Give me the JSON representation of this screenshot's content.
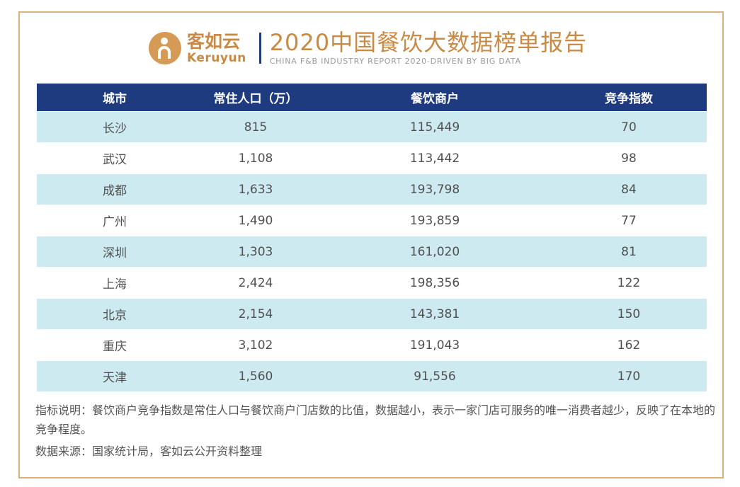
{
  "brand": {
    "cn": "客如云",
    "en": "Keruyun",
    "color": "#c98a45"
  },
  "report": {
    "title": "2020中国餐饮大数据榜单报告",
    "subtitle": "CHINA F&B INDUSTRY REPORT 2020-DRIVEN BY BIG DATA"
  },
  "table": {
    "headers": {
      "city": "城市",
      "population": "常住人口（万）",
      "merchants": "餐饮商户",
      "index": "竞争指数"
    },
    "header_color": "#1f3b80",
    "stripe_color": "#cdeaf0",
    "rows": [
      {
        "city": "长沙",
        "population": "815",
        "merchants": "115,449",
        "index": "70"
      },
      {
        "city": "武汉",
        "population": "1,108",
        "merchants": "113,442",
        "index": "98"
      },
      {
        "city": "成都",
        "population": "1,633",
        "merchants": "193,798",
        "index": "84"
      },
      {
        "city": "广州",
        "population": "1,490",
        "merchants": "193,859",
        "index": "77"
      },
      {
        "city": "深圳",
        "population": "1,303",
        "merchants": "161,020",
        "index": "81"
      },
      {
        "city": "上海",
        "population": "2,424",
        "merchants": "198,356",
        "index": "122"
      },
      {
        "city": "北京",
        "population": "2,154",
        "merchants": "143,381",
        "index": "150"
      },
      {
        "city": "重庆",
        "population": "3,102",
        "merchants": "191,043",
        "index": "162"
      },
      {
        "city": "天津",
        "population": "1,560",
        "merchants": "91,556",
        "index": "170"
      }
    ]
  },
  "notes": {
    "explanation": "指标说明：餐饮商户竞争指数是常住人口与餐饮商户门店数的比值，数据越小，表示一家门店可服务的唯一消费者越少，反映了在本地的竞争程度。",
    "source": "数据来源：国家统计局，客如云公开资料整理"
  }
}
